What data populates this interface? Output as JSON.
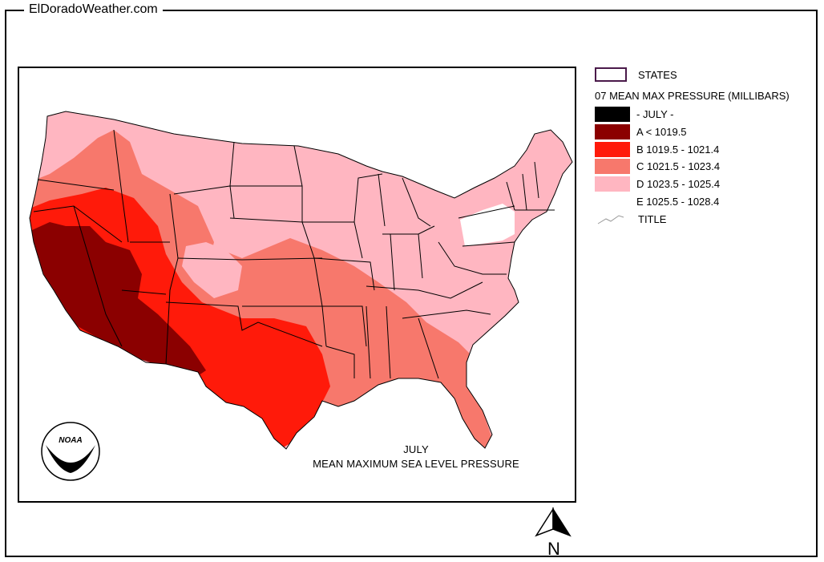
{
  "site_title": "ElDoradoWeather.com",
  "map": {
    "caption_line1": "JULY",
    "caption_line2": "MEAN MAXIMUM SEA LEVEL PRESSURE",
    "logo_label": "NOAA"
  },
  "legend": {
    "states_label": "STATES",
    "heading": "07 MEAN MAX PRESSURE (MILLIBARS)",
    "classes": [
      {
        "label": "- JULY -",
        "color": "#000000"
      },
      {
        "label": "A < 1019.5",
        "color": "#8b0000"
      },
      {
        "label": "B 1019.5 - 1021.4",
        "color": "#ff1a0a"
      },
      {
        "label": "C 1021.5 - 1023.4",
        "color": "#f7786c"
      },
      {
        "label": "D 1023.5 - 1025.4",
        "color": "#ffb6c1"
      },
      {
        "label": "E 1025.5 - 1028.4",
        "color": "#ffffff"
      }
    ],
    "title_label": "TITLE"
  },
  "north_label": "N"
}
